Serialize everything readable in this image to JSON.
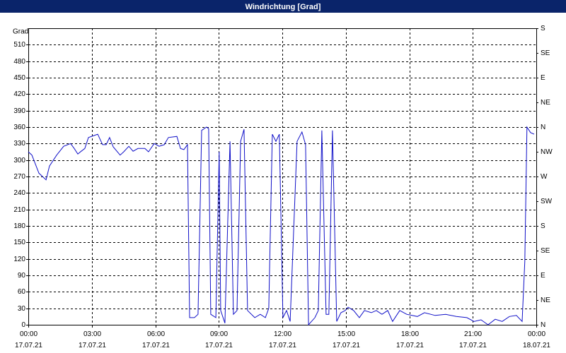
{
  "chart_data": {
    "type": "line",
    "title": "Windrichtung [Grad]",
    "ylabel": "Grad",
    "x": [
      0,
      0.17,
      0.5,
      0.84,
      1.0,
      1.34,
      1.67,
      2.0,
      2.17,
      2.34,
      2.5,
      2.67,
      2.84,
      3.28,
      3.51,
      3.68,
      3.84,
      4.01,
      4.34,
      4.51,
      4.75,
      4.95,
      5.18,
      5.51,
      5.68,
      5.95,
      6.18,
      6.42,
      6.62,
      7.02,
      7.19,
      7.35,
      7.52,
      7.62,
      7.85,
      8.02,
      8.19,
      8.42,
      8.52,
      8.62,
      8.86,
      9.02,
      9.09,
      9.29,
      9.53,
      9.69,
      9.86,
      10.03,
      10.19,
      10.36,
      10.7,
      10.96,
      11.2,
      11.36,
      11.53,
      11.7,
      11.86,
      12.03,
      12.2,
      12.37,
      12.7,
      12.93,
      13.1,
      13.24,
      13.54,
      13.7,
      13.87,
      14.07,
      14.2,
      14.37,
      14.57,
      14.77,
      14.97,
      15.11,
      15.37,
      15.64,
      15.88,
      16.21,
      16.44,
      16.71,
      16.98,
      17.21,
      17.55,
      17.88,
      18.38,
      18.72,
      19.22,
      19.72,
      20.22,
      20.72,
      21.06,
      21.39,
      21.72,
      22.06,
      22.39,
      22.73,
      23.06,
      23.33,
      23.46,
      23.56,
      23.73,
      23.9
    ],
    "series": [
      {
        "name": "Windrichtung",
        "color": "#1010c8",
        "values": [
          315,
          309,
          276,
          264,
          289,
          309,
          325,
          330,
          321,
          311,
          316,
          321,
          341,
          347,
          328,
          328,
          341,
          324,
          309,
          315,
          325,
          316,
          321,
          321,
          315,
          330,
          325,
          328,
          341,
          343,
          321,
          319,
          328,
          13,
          13,
          19,
          354,
          360,
          357,
          19,
          13,
          315,
          26,
          3,
          334,
          19,
          26,
          334,
          356,
          26,
          13,
          19,
          13,
          30,
          347,
          334,
          347,
          13,
          26,
          6,
          334,
          351,
          328,
          0,
          13,
          26,
          354,
          19,
          19,
          354,
          6,
          22,
          26,
          32,
          26,
          13,
          26,
          22,
          26,
          19,
          26,
          6,
          26,
          19,
          15,
          22,
          17,
          19,
          15,
          13,
          6,
          9,
          0,
          10,
          6,
          15,
          17,
          6,
          116,
          360,
          350,
          347
        ]
      }
    ],
    "xlim": [
      0,
      24
    ],
    "xticks": [
      {
        "value": 0,
        "label": "00:00\n17.07.21"
      },
      {
        "value": 3,
        "label": "03:00\n17.07.21"
      },
      {
        "value": 6,
        "label": "06:00\n17.07.21"
      },
      {
        "value": 9,
        "label": "09:00\n17.07.21"
      },
      {
        "value": 12,
        "label": "12:00\n17.07.21"
      },
      {
        "value": 15,
        "label": "15:00\n17.07.21"
      },
      {
        "value": 18,
        "label": "18:00\n17.07.21"
      },
      {
        "value": 21,
        "label": "21:00\n17.07.21"
      },
      {
        "value": 24,
        "label": "00:00\n18.07.21"
      }
    ],
    "ylim": [
      0,
      540
    ],
    "yticks": [
      0,
      30,
      60,
      90,
      120,
      150,
      180,
      210,
      240,
      270,
      300,
      330,
      360,
      390,
      420,
      450,
      480,
      510
    ],
    "y2lim": [
      0,
      540
    ],
    "y2ticks": [
      {
        "value": 0,
        "label": "N"
      },
      {
        "value": 45,
        "label": "NE"
      },
      {
        "value": 90,
        "label": "E"
      },
      {
        "value": 135,
        "label": "SE"
      },
      {
        "value": 180,
        "label": "S"
      },
      {
        "value": 225,
        "label": "SW"
      },
      {
        "value": 270,
        "label": "W"
      },
      {
        "value": 315,
        "label": "NW"
      },
      {
        "value": 360,
        "label": "N"
      },
      {
        "value": 405,
        "label": "NE"
      },
      {
        "value": 450,
        "label": "E"
      },
      {
        "value": 495,
        "label": "SE"
      },
      {
        "value": 540,
        "label": "S"
      }
    ],
    "grid": true
  }
}
